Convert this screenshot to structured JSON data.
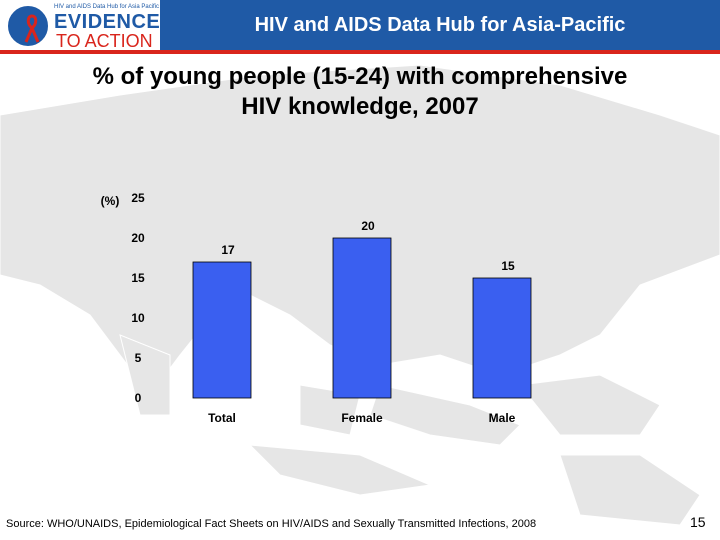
{
  "header": {
    "title": "HIV and AIDS Data Hub for Asia-Pacific",
    "logo_small": "HIV and AIDS Data Hub for Asia Pacific",
    "logo_main": "EVIDENCE",
    "logo_sub": "TO ACTION",
    "brand_color": "#1f5aa6",
    "accent_color": "#d9251c"
  },
  "slide": {
    "title_line1": "% of young people (15-24) with comprehensive",
    "title_line2": "HIV knowledge, 2007",
    "source": "Source: WHO/UNAIDS, Epidemiological Fact Sheets on HIV/AIDS and Sexually Transmitted Infections, 2008",
    "page_number": "15"
  },
  "chart_data": {
    "type": "bar",
    "categories": [
      "Total",
      "Female",
      "Male"
    ],
    "values": [
      17,
      20,
      15
    ],
    "ylabel": "(%)",
    "ylim": [
      0,
      25
    ],
    "yticks": [
      0,
      5,
      10,
      15,
      20,
      25
    ],
    "bar_color": "#3a5ff0",
    "grid": false,
    "legend": "none"
  }
}
